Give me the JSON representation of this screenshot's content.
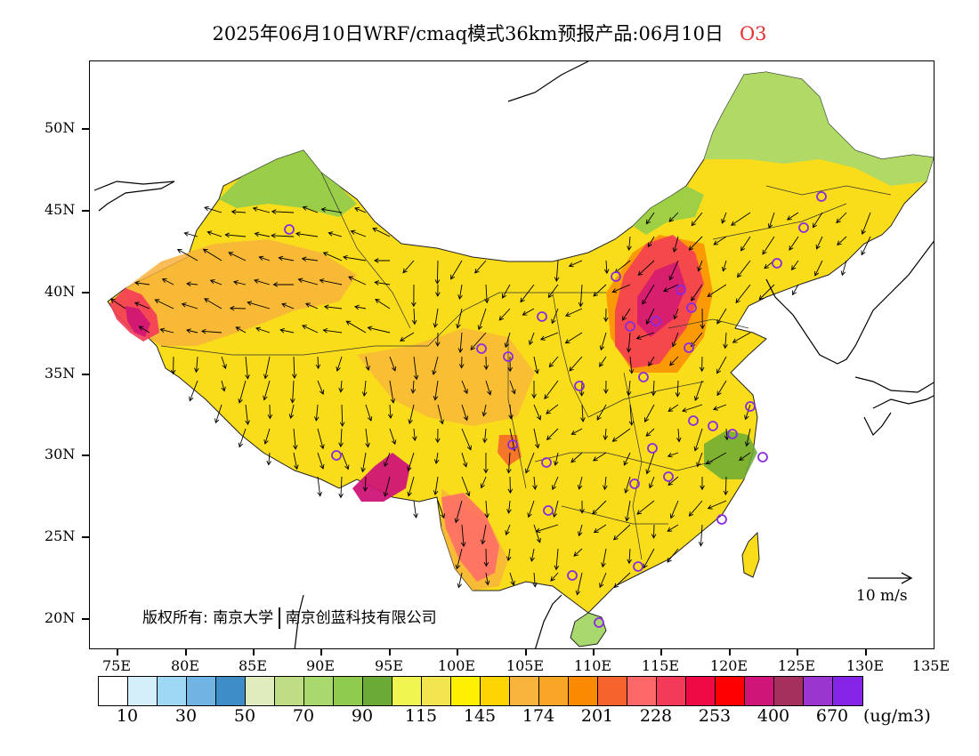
{
  "header": {
    "title": "2025年06月10日WRF/cmaq模式36km预报产品:06月10日",
    "species": "O3"
  },
  "axes": {
    "lat_labels": [
      "50N",
      "45N",
      "40N",
      "35N",
      "30N",
      "25N",
      "20N"
    ],
    "lon_labels": [
      "75E",
      "80E",
      "85E",
      "90E",
      "95E",
      "100E",
      "105E",
      "110E",
      "115E",
      "120E",
      "125E",
      "130E",
      "135E"
    ]
  },
  "copyright": {
    "prefix": "版权所有:",
    "org1": "南京大学",
    "org2": "南京创蓝科技有限公司"
  },
  "wind_key": {
    "label": "10 m/s"
  },
  "legend": {
    "colors": [
      "#ffffff",
      "#d4eefa",
      "#9fd8f4",
      "#6fb4e2",
      "#3f8dc6",
      "#dfecbd",
      "#bedd84",
      "#a9d86e",
      "#8fcc4e",
      "#6aaa36",
      "#f0f550",
      "#f3e54f",
      "#fff000",
      "#ffd400",
      "#f8b33c",
      "#f9a525",
      "#fb8a00",
      "#f4642c",
      "#ff6868",
      "#f33a58",
      "#ef0a46",
      "#ff0000",
      "#cf1577",
      "#a5305e",
      "#9a35cf",
      "#8523e6"
    ],
    "labels": [
      "10",
      "30",
      "50",
      "70",
      "90",
      "115",
      "145",
      "174",
      "201",
      "228",
      "253",
      "400",
      "670"
    ],
    "unit": "(ug/m3)"
  }
}
